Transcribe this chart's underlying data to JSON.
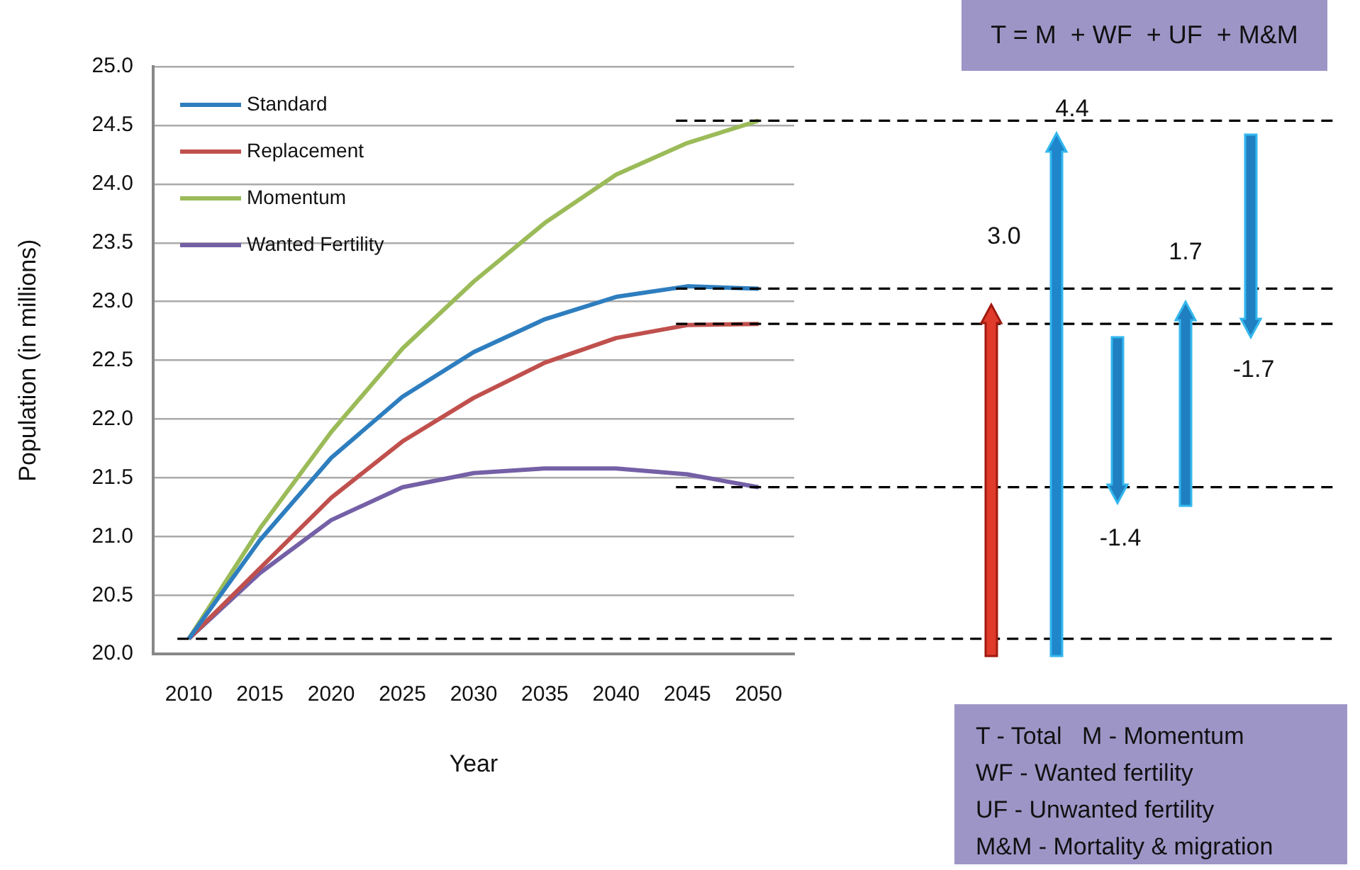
{
  "chart_data": {
    "type": "line",
    "xlabel": "Year",
    "ylabel": "Population (in millions)",
    "categories": [
      "2010",
      "2015",
      "2020",
      "2025",
      "2030",
      "2035",
      "2040",
      "2045",
      "2050"
    ],
    "series": [
      {
        "name": "Standard",
        "color": "#2e7ebf",
        "values": [
          20.13,
          20.97,
          21.67,
          22.19,
          22.57,
          22.85,
          23.04,
          23.13,
          23.11
        ]
      },
      {
        "name": "Replacement",
        "color": "#c0504d",
        "values": [
          20.13,
          20.73,
          21.33,
          21.81,
          22.18,
          22.48,
          22.69,
          22.8,
          22.81
        ]
      },
      {
        "name": "Momentum",
        "color": "#9bbb59",
        "values": [
          20.13,
          21.07,
          21.89,
          22.6,
          23.17,
          23.67,
          24.08,
          24.35,
          24.54
        ]
      },
      {
        "name": "Wanted Fertility",
        "color": "#7460a6",
        "values": [
          20.13,
          20.69,
          21.14,
          21.42,
          21.54,
          21.58,
          21.58,
          21.53,
          21.42
        ]
      }
    ],
    "ylim": [
      20,
      25
    ],
    "yticks": [
      {
        "value": 20,
        "label": "20.0"
      },
      20.5,
      {
        "value": 21,
        "label": "21.0"
      },
      21.5,
      {
        "value": 22,
        "label": "22.0"
      },
      22.5,
      {
        "value": 23,
        "label": "23.0"
      },
      23.5,
      {
        "value": 24,
        "label": "24.0"
      },
      24.5,
      {
        "value": 25,
        "label": "25.0"
      }
    ],
    "grid": "y",
    "legend": "top left",
    "marker": "none",
    "line_style": "solid",
    "ref_lines": [
      {
        "axis": "y",
        "value": 20.13,
        "color": "#000000",
        "line_style": "dashed"
      },
      {
        "axis": "y",
        "value": 24.54,
        "color": "#000000",
        "line_style": "dashed"
      },
      {
        "axis": "y",
        "value": 23.11,
        "color": "#000000",
        "line_style": "dashed"
      },
      {
        "axis": "y",
        "value": 22.81,
        "color": "#000000",
        "line_style": "dashed"
      },
      {
        "axis": "y",
        "value": 21.42,
        "color": "#000000",
        "line_style": "dashed"
      }
    ],
    "annotations": [
      "T = M  + WF  + UF  + M&M",
      "3.0",
      "4.4",
      "-1.4",
      "1.7",
      "-1.7",
      "T - Total   M - Momentum",
      "WF - Wanted fertility",
      "UF - Unwanted fertility",
      "M&M - Mortality & migration"
    ]
  }
}
